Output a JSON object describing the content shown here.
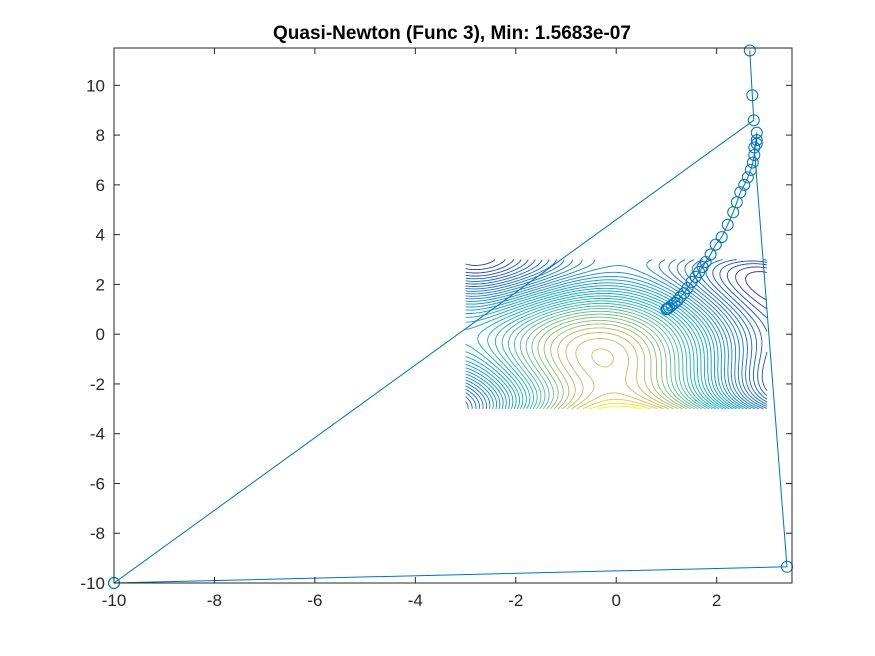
{
  "chart_data": {
    "type": "line",
    "title": "Quasi-Newton (Func 3), Min: 1.5683e-07",
    "xlabel": "",
    "ylabel": "",
    "xlim": [
      -10,
      3.5
    ],
    "ylim": [
      -10,
      11.5
    ],
    "xticks": [
      "-10",
      "-8",
      "-6",
      "-4",
      "-2",
      "0",
      "2"
    ],
    "yticks": [
      "-10",
      "-8",
      "-6",
      "-4",
      "-2",
      "0",
      "2",
      "4",
      "6",
      "8",
      "10"
    ],
    "grid": false,
    "legend": "none",
    "contour": {
      "function": "(x^2 + y - 11)^2 + (x + y^2 - 7)^2",
      "x_range": [
        -3,
        3
      ],
      "y_range": [
        -3,
        3
      ],
      "levels": 40,
      "colormap": "parula"
    },
    "series": [
      {
        "marker": "circle",
        "color": "#0072BD",
        "x": [
          -10,
          3.4,
          2.75,
          2.8,
          2.8,
          2.8,
          2.75,
          2.72,
          2.68,
          2.62,
          2.55,
          2.47,
          2.4,
          2.33,
          2.22,
          2.1,
          1.98,
          1.88,
          1.78,
          1.72,
          1.65,
          1.58,
          1.5,
          1.42,
          1.35,
          1.28,
          1.22,
          1.16,
          1.1,
          1.05,
          1.02,
          1.0
        ],
        "y": [
          -10,
          -9.35,
          7.5,
          7.65,
          7.8,
          8.1,
          7.2,
          6.9,
          6.6,
          6.3,
          6.0,
          5.7,
          5.3,
          4.9,
          4.4,
          3.9,
          3.6,
          3.2,
          2.9,
          2.7,
          2.5,
          2.3,
          2.1,
          1.85,
          1.65,
          1.5,
          1.35,
          1.25,
          1.15,
          1.07,
          1.02,
          1.0
        ]
      },
      {
        "marker": "circle",
        "color": "#0072BD",
        "x": [
          2.66,
          2.71,
          2.74,
          -10
        ],
        "y": [
          11.4,
          9.6,
          8.6,
          -10
        ]
      }
    ]
  }
}
